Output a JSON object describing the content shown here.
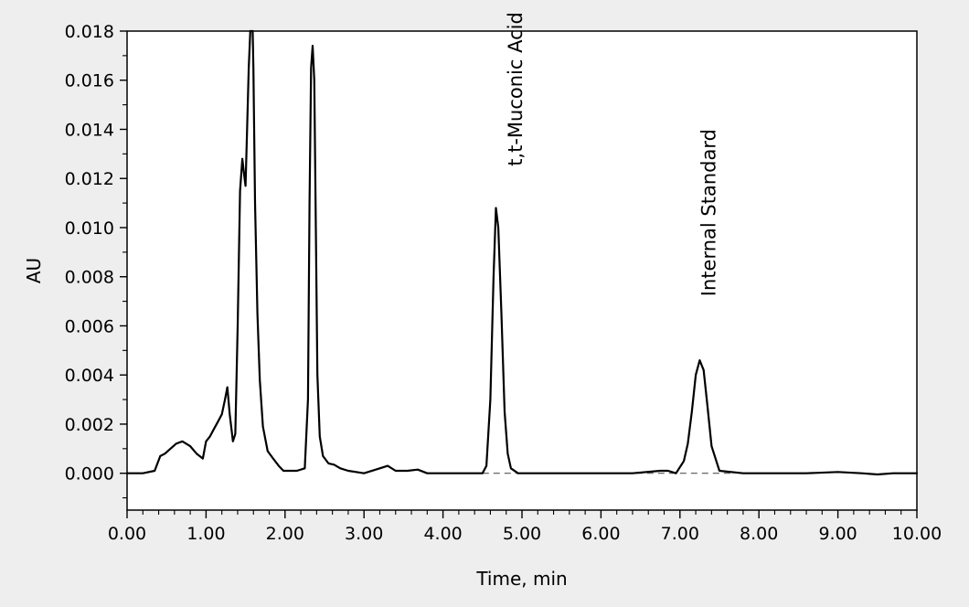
{
  "chart_data": {
    "type": "line",
    "title": "",
    "xlabel": "Time, min",
    "ylabel": "AU",
    "xlim": [
      0,
      10
    ],
    "ylim": [
      -0.0015,
      0.018
    ],
    "grid": false,
    "x_ticks": [
      0,
      1,
      2,
      3,
      4,
      5,
      6,
      7,
      8,
      9,
      10
    ],
    "x_tick_labels": [
      "0.00",
      "1.00",
      "2.00",
      "3.00",
      "4.00",
      "5.00",
      "6.00",
      "7.00",
      "8.00",
      "9.00",
      "10.00"
    ],
    "y_ticks": [
      0,
      0.002,
      0.004,
      0.006,
      0.008,
      0.01,
      0.012,
      0.014,
      0.016,
      0.018
    ],
    "y_tick_labels": [
      "0.000",
      "0.002",
      "0.004",
      "0.006",
      "0.008",
      "0.010",
      "0.012",
      "0.014",
      "0.016",
      "0.018"
    ],
    "baseline": {
      "style": "dashed",
      "y": 0,
      "x_start": 4.5,
      "x_end": 7.7
    },
    "series": [
      {
        "color": "#000000",
        "x": [
          0.0,
          0.2,
          0.35,
          0.42,
          0.48,
          0.55,
          0.62,
          0.7,
          0.8,
          0.88,
          0.96,
          1.0,
          1.05,
          1.1,
          1.15,
          1.2,
          1.24,
          1.27,
          1.3,
          1.34,
          1.37,
          1.4,
          1.43,
          1.46,
          1.48,
          1.5,
          1.52,
          1.54,
          1.56,
          1.57,
          1.58,
          1.59,
          1.6,
          1.62,
          1.65,
          1.68,
          1.72,
          1.78,
          1.85,
          1.92,
          1.98,
          2.05,
          2.15,
          2.25,
          2.29,
          2.31,
          2.33,
          2.35,
          2.37,
          2.39,
          2.41,
          2.44,
          2.48,
          2.55,
          2.62,
          2.7,
          2.8,
          3.0,
          3.2,
          3.3,
          3.4,
          3.55,
          3.68,
          3.8,
          4.0,
          4.2,
          4.5,
          4.55,
          4.6,
          4.64,
          4.67,
          4.7,
          4.74,
          4.78,
          4.82,
          4.86,
          4.95,
          5.2,
          5.6,
          6.0,
          6.4,
          6.75,
          6.85,
          6.95,
          7.05,
          7.1,
          7.15,
          7.2,
          7.25,
          7.3,
          7.35,
          7.4,
          7.5,
          7.8,
          8.2,
          8.6,
          9.0,
          9.3,
          9.5,
          9.7,
          10.0
        ],
        "y": [
          0.0,
          0.0,
          0.0001,
          0.0007,
          0.0008,
          0.001,
          0.0012,
          0.0013,
          0.0011,
          0.0008,
          0.0006,
          0.0013,
          0.0015,
          0.0018,
          0.0021,
          0.0024,
          0.003,
          0.0035,
          0.0024,
          0.0013,
          0.0016,
          0.006,
          0.0115,
          0.0128,
          0.0122,
          0.0117,
          0.014,
          0.0165,
          0.018,
          0.018,
          0.018,
          0.018,
          0.0165,
          0.011,
          0.0065,
          0.0038,
          0.0019,
          0.0009,
          0.0006,
          0.0003,
          0.0001,
          0.0001,
          0.0001,
          0.0002,
          0.003,
          0.011,
          0.0165,
          0.0174,
          0.016,
          0.01,
          0.004,
          0.0015,
          0.0007,
          0.0004,
          0.00035,
          0.0002,
          0.0001,
          0.0,
          0.0002,
          0.0003,
          0.0001,
          0.0001,
          0.00015,
          0.0,
          0.0,
          0.0,
          0.0,
          0.0003,
          0.003,
          0.008,
          0.0108,
          0.01,
          0.0065,
          0.0025,
          0.0008,
          0.0002,
          0.0,
          0.0,
          0.0,
          0.0,
          0.0,
          0.0001,
          0.0001,
          0.0,
          0.0005,
          0.0012,
          0.0025,
          0.004,
          0.0046,
          0.0042,
          0.0027,
          0.0011,
          0.0001,
          0.0,
          0.0,
          0.0,
          5e-05,
          0.0,
          -5e-05,
          0.0,
          0.0
        ]
      }
    ],
    "annotations": [
      {
        "text": "t,t-Muconic Acid",
        "x": 5.0,
        "y": 0.0125,
        "rotation": -90
      },
      {
        "text": "Internal Standard",
        "x": 7.45,
        "y": 0.0072,
        "rotation": -90
      }
    ]
  }
}
